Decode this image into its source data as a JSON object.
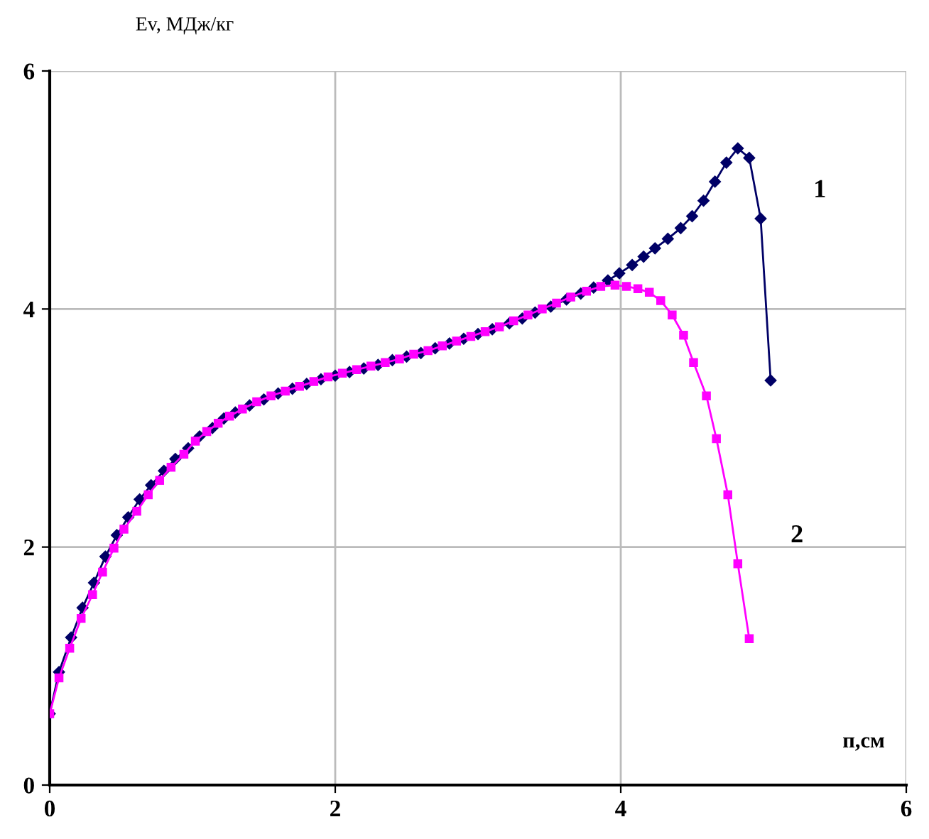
{
  "chart_data": {
    "type": "line",
    "ylabel": "Ev, МДж/кг",
    "xlabel": "п,см",
    "xlim": [
      0,
      6
    ],
    "ylim": [
      0,
      6
    ],
    "xticks": [
      0,
      2,
      4,
      6
    ],
    "yticks": [
      0,
      2,
      4,
      6
    ],
    "grid": true,
    "line_style": "solid",
    "series": [
      {
        "name": "1",
        "color": "#000066",
        "marker": "diamond",
        "x": [
          0,
          0.065,
          0.15,
          0.23,
          0.31,
          0.39,
          0.47,
          0.55,
          0.63,
          0.71,
          0.8,
          0.88,
          0.97,
          1.05,
          1.14,
          1.22,
          1.3,
          1.4,
          1.5,
          1.6,
          1.7,
          1.8,
          1.9,
          2.0,
          2.1,
          2.2,
          2.3,
          2.4,
          2.5,
          2.6,
          2.7,
          2.8,
          2.9,
          3.0,
          3.1,
          3.22,
          3.31,
          3.4,
          3.51,
          3.62,
          3.72,
          3.81,
          3.91,
          3.99,
          4.08,
          4.16,
          4.24,
          4.33,
          4.42,
          4.5,
          4.58,
          4.66,
          4.74,
          4.82,
          4.9,
          4.98,
          5.05
        ],
        "values": [
          0.6,
          0.95,
          1.24,
          1.49,
          1.7,
          1.92,
          2.1,
          2.25,
          2.4,
          2.52,
          2.64,
          2.74,
          2.83,
          2.93,
          3.0,
          3.08,
          3.13,
          3.19,
          3.24,
          3.29,
          3.33,
          3.37,
          3.41,
          3.44,
          3.47,
          3.5,
          3.53,
          3.57,
          3.6,
          3.63,
          3.67,
          3.71,
          3.75,
          3.79,
          3.83,
          3.88,
          3.92,
          3.97,
          4.02,
          4.08,
          4.13,
          4.18,
          4.24,
          4.3,
          4.37,
          4.44,
          4.51,
          4.59,
          4.68,
          4.78,
          4.91,
          5.07,
          5.23,
          5.35,
          5.27,
          4.76,
          3.4
        ]
      },
      {
        "name": "2",
        "color": "#ff00ff",
        "marker": "square",
        "x": [
          0,
          0.065,
          0.14,
          0.22,
          0.3,
          0.37,
          0.45,
          0.52,
          0.61,
          0.69,
          0.77,
          0.85,
          0.94,
          1.02,
          1.1,
          1.18,
          1.26,
          1.35,
          1.45,
          1.55,
          1.65,
          1.75,
          1.85,
          1.95,
          2.05,
          2.15,
          2.25,
          2.35,
          2.45,
          2.55,
          2.65,
          2.75,
          2.85,
          2.95,
          3.05,
          3.15,
          3.25,
          3.35,
          3.45,
          3.55,
          3.65,
          3.76,
          3.86,
          3.96,
          4.04,
          4.12,
          4.2,
          4.28,
          4.36,
          4.44,
          4.51,
          4.6,
          4.67,
          4.75,
          4.82,
          4.9
        ],
        "values": [
          0.6,
          0.9,
          1.15,
          1.4,
          1.6,
          1.79,
          1.99,
          2.15,
          2.3,
          2.44,
          2.56,
          2.67,
          2.78,
          2.89,
          2.97,
          3.04,
          3.1,
          3.16,
          3.22,
          3.27,
          3.31,
          3.35,
          3.39,
          3.43,
          3.46,
          3.49,
          3.52,
          3.55,
          3.58,
          3.62,
          3.65,
          3.69,
          3.73,
          3.77,
          3.81,
          3.85,
          3.9,
          3.95,
          4.0,
          4.05,
          4.1,
          4.15,
          4.19,
          4.2,
          4.19,
          4.17,
          4.14,
          4.07,
          3.95,
          3.78,
          3.55,
          3.27,
          2.91,
          2.44,
          1.86,
          1.23
        ]
      }
    ]
  }
}
